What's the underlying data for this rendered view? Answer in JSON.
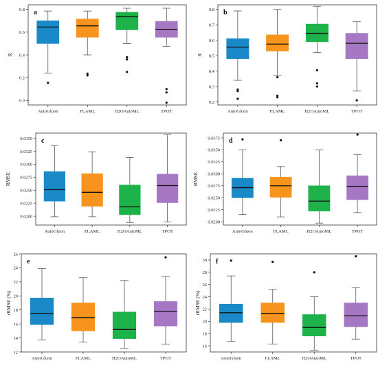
{
  "palette": [
    "#1a89c8",
    "#f7941d",
    "#1db34a",
    "#a678c4"
  ],
  "chart_data": [
    {
      "type": "box",
      "panel": "a",
      "ylabel": "R",
      "categories": [
        "AutoGluon",
        "FLAML",
        "H2OAutoML",
        "TPOT"
      ],
      "ylim": [
        -0.04,
        0.84
      ],
      "yticks": [
        0.0,
        0.2,
        0.4,
        0.6,
        0.8
      ],
      "ytick_labels": [
        "0.0",
        "0.2",
        "0.4",
        "0.6",
        "0.8"
      ],
      "boxes": [
        {
          "min": 0.24,
          "q1": 0.5,
          "median": 0.645,
          "q3": 0.7,
          "max": 0.785,
          "outliers": [
            0.155
          ]
        },
        {
          "min": 0.4,
          "q1": 0.555,
          "median": 0.655,
          "q3": 0.715,
          "max": 0.785,
          "outliers": [
            0.235,
            0.22
          ]
        },
        {
          "min": 0.5,
          "q1": 0.62,
          "median": 0.735,
          "q3": 0.775,
          "max": 0.81,
          "outliers": [
            0.38,
            0.36,
            0.25
          ]
        },
        {
          "min": 0.475,
          "q1": 0.555,
          "median": 0.625,
          "q3": 0.695,
          "max": 0.81,
          "outliers": [
            0.1,
            0.07,
            -0.02
          ]
        }
      ]
    },
    {
      "type": "box",
      "panel": "b",
      "ylabel": "R",
      "categories": [
        "AutoGluon",
        "FLAML",
        "H2OAutoML",
        "TPOT"
      ],
      "ylim": [
        0.18,
        0.83
      ],
      "yticks": [
        0.2,
        0.3,
        0.4,
        0.5,
        0.6,
        0.7,
        0.8
      ],
      "ytick_labels": [
        "0.2",
        "0.3",
        "0.4",
        "0.5",
        "0.6",
        "0.7",
        "0.8"
      ],
      "boxes": [
        {
          "min": 0.34,
          "q1": 0.48,
          "median": 0.555,
          "q3": 0.61,
          "max": 0.79,
          "outliers": [
            0.28,
            0.27,
            0.22
          ]
        },
        {
          "min": 0.37,
          "q1": 0.53,
          "median": 0.575,
          "q3": 0.635,
          "max": 0.8,
          "outliers": [
            0.36,
            0.24,
            0.23
          ]
        },
        {
          "min": 0.52,
          "q1": 0.59,
          "median": 0.645,
          "q3": 0.705,
          "max": 0.82,
          "outliers": [
            0.405,
            0.32,
            0.3
          ]
        },
        {
          "min": 0.27,
          "q1": 0.48,
          "median": 0.58,
          "q3": 0.645,
          "max": 0.72,
          "outliers": [
            0.21
          ]
        }
      ]
    },
    {
      "type": "box",
      "panel": "c",
      "ylabel": "RMSE",
      "categories": [
        "AutoGluon",
        "FLAML",
        "H2OAutoML",
        "TPOT"
      ],
      "ylim": [
        0.0183,
        0.036
      ],
      "yticks": [
        0.02,
        0.0225,
        0.025,
        0.0275,
        0.03,
        0.0325,
        0.035
      ],
      "ytick_labels": [
        "0.0200",
        "0.0225",
        "0.0250",
        "0.0275",
        "0.0300",
        "0.0325",
        "0.0350"
      ],
      "boxes": [
        {
          "min": 0.0199,
          "q1": 0.0229,
          "median": 0.0251,
          "q3": 0.0286,
          "max": 0.0336,
          "outliers": []
        },
        {
          "min": 0.0199,
          "q1": 0.0219,
          "median": 0.0246,
          "q3": 0.0282,
          "max": 0.0324,
          "outliers": []
        },
        {
          "min": 0.0188,
          "q1": 0.0203,
          "median": 0.0218,
          "q3": 0.026,
          "max": 0.0313,
          "outliers": []
        },
        {
          "min": 0.0189,
          "q1": 0.0226,
          "median": 0.0259,
          "q3": 0.0281,
          "max": 0.0357,
          "outliers": []
        }
      ]
    },
    {
      "type": "box",
      "panel": "d",
      "ylabel": "RMSE",
      "categories": [
        "AutoGluon",
        "FLAML",
        "H2OAutoML",
        "TPOT"
      ],
      "ylim": [
        0.0193,
        0.0385
      ],
      "yticks": [
        0.02,
        0.0225,
        0.025,
        0.0275,
        0.03,
        0.0325,
        0.035,
        0.0375
      ],
      "ytick_labels": [
        "0.0200",
        "0.0225",
        "0.0250",
        "0.0275",
        "0.0300",
        "0.0325",
        "0.0350",
        "0.0375"
      ],
      "boxes": [
        {
          "min": 0.0215,
          "q1": 0.025,
          "median": 0.0271,
          "q3": 0.0291,
          "max": 0.035,
          "outliers": [
            0.0372
          ]
        },
        {
          "min": 0.021,
          "q1": 0.0251,
          "median": 0.0275,
          "q3": 0.0293,
          "max": 0.0315,
          "outliers": [
            0.037
          ]
        },
        {
          "min": 0.0197,
          "q1": 0.0222,
          "median": 0.0243,
          "q3": 0.0275,
          "max": 0.035,
          "outliers": []
        },
        {
          "min": 0.0219,
          "q1": 0.0246,
          "median": 0.0274,
          "q3": 0.0296,
          "max": 0.034,
          "outliers": [
            0.0382
          ]
        }
      ]
    },
    {
      "type": "box",
      "panel": "e",
      "ylabel": "rRMSE (%)",
      "categories": [
        "AutoGluon",
        "FLAML",
        "H2OAutoML",
        "TPOT"
      ],
      "ylim": [
        12,
        26
      ],
      "yticks": [
        12,
        14,
        16,
        18,
        20,
        22,
        24,
        26
      ],
      "ytick_labels": [
        "12",
        "14",
        "16",
        "18",
        "20",
        "22",
        "24",
        "26"
      ],
      "boxes": [
        {
          "min": 13.7,
          "q1": 15.9,
          "median": 17.5,
          "q3": 19.7,
          "max": 23.9,
          "outliers": []
        },
        {
          "min": 13.4,
          "q1": 15.0,
          "median": 16.9,
          "q3": 19.0,
          "max": 22.6,
          "outliers": []
        },
        {
          "min": 12.5,
          "q1": 13.9,
          "median": 15.2,
          "q3": 17.7,
          "max": 22.2,
          "outliers": []
        },
        {
          "min": 13.1,
          "q1": 15.7,
          "median": 17.8,
          "q3": 19.2,
          "max": 22.8,
          "outliers": [
            25.5
          ]
        }
      ]
    },
    {
      "type": "box",
      "panel": "f",
      "ylabel": "rRMSE (%)",
      "categories": [
        "AutoGluon",
        "FLAML",
        "H2OAutoML",
        "TPOT"
      ],
      "ylim": [
        15,
        31
      ],
      "yticks": [
        16,
        18,
        20,
        22,
        24,
        26,
        28,
        30
      ],
      "ytick_labels": [
        "16",
        "18",
        "20",
        "22",
        "24",
        "26",
        "28",
        "30"
      ],
      "boxes": [
        {
          "min": 16.7,
          "q1": 19.8,
          "median": 21.4,
          "q3": 22.8,
          "max": 27.4,
          "outliers": [
            29.9
          ]
        },
        {
          "min": 16.3,
          "q1": 19.8,
          "median": 21.3,
          "q3": 23.0,
          "max": 25.2,
          "outliers": [
            29.7
          ]
        },
        {
          "min": 15.3,
          "q1": 17.6,
          "median": 19.0,
          "q3": 21.1,
          "max": 24.0,
          "outliers": [
            28.0
          ]
        },
        {
          "min": 17.1,
          "q1": 19.1,
          "median": 20.9,
          "q3": 23.0,
          "max": 25.5,
          "outliers": [
            30.6
          ]
        }
      ]
    }
  ]
}
